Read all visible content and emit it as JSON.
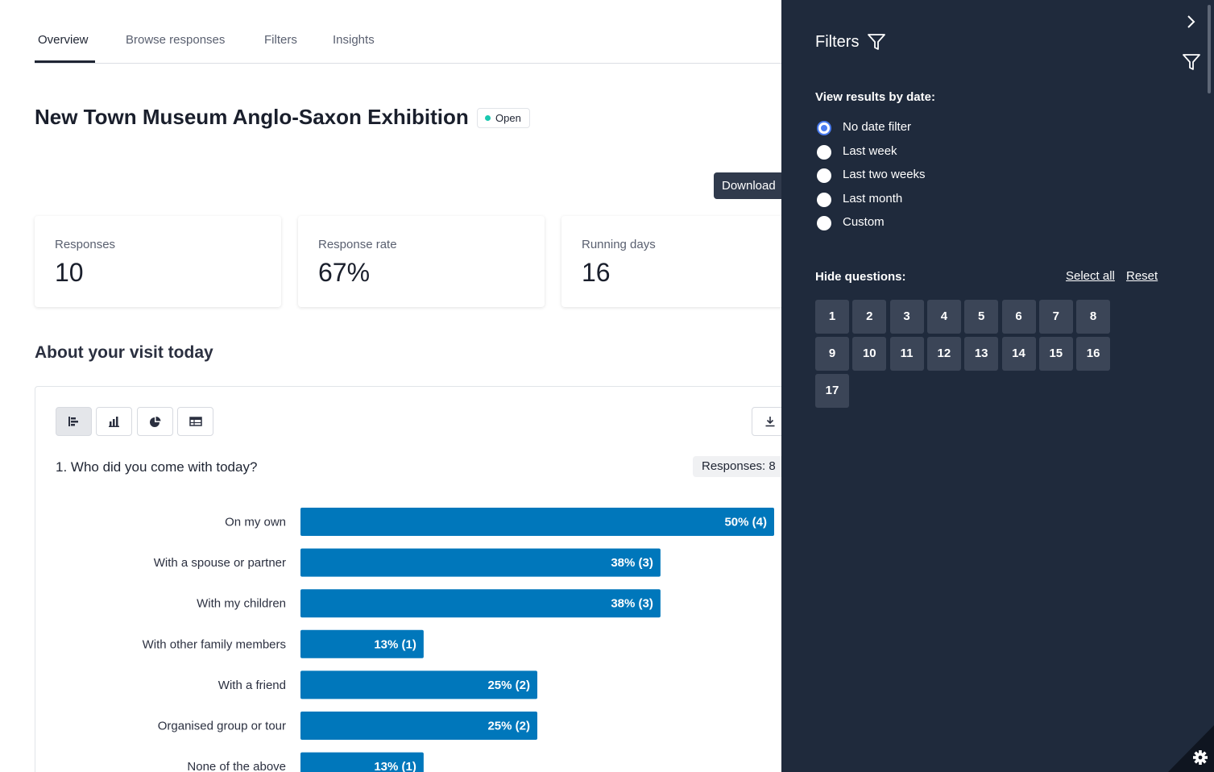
{
  "tabs": [
    {
      "label": "Overview",
      "active": true
    },
    {
      "label": "Browse responses",
      "active": false
    },
    {
      "label": "Filters",
      "active": false
    },
    {
      "label": "Insights",
      "active": false
    }
  ],
  "survey": {
    "title": "New Town Museum Anglo-Saxon Exhibition",
    "status": "Open",
    "status_color": "#1ac8b0"
  },
  "download_label": "Download",
  "stats": [
    {
      "label": "Responses",
      "value": "10"
    },
    {
      "label": "Response rate",
      "value": "67%"
    },
    {
      "label": "Running days",
      "value": "16"
    }
  ],
  "section_title": "About your visit today",
  "chart_view_buttons": [
    {
      "icon": "horizontal-bar-chart-icon",
      "active": true
    },
    {
      "icon": "vertical-bar-chart-icon",
      "active": false
    },
    {
      "icon": "pie-chart-icon",
      "active": false
    },
    {
      "icon": "table-icon",
      "active": false
    }
  ],
  "question": {
    "title": "1. Who did you come with today?",
    "responses_label": "Responses: 8"
  },
  "chart_data": {
    "type": "bar",
    "orientation": "horizontal",
    "categories": [
      "On my own",
      "With a spouse or partner",
      "With my children",
      "With other family members",
      "With a friend",
      "Organised group or tour",
      "None of the above"
    ],
    "values": [
      50,
      38,
      38,
      13,
      25,
      25,
      13
    ],
    "counts": [
      4,
      3,
      3,
      1,
      2,
      2,
      1
    ],
    "value_labels": [
      "50% (4)",
      "38% (3)",
      "38% (3)",
      "13% (1)",
      "25% (2)",
      "25% (2)",
      "13% (1)"
    ],
    "bar_color": "#0077bb",
    "xlim": [
      0,
      50
    ]
  },
  "filters_panel": {
    "title": "Filters",
    "date_group_label": "View results by date:",
    "date_options": [
      {
        "label": "No date filter",
        "checked": true
      },
      {
        "label": "Last week",
        "checked": false
      },
      {
        "label": "Last two weeks",
        "checked": false
      },
      {
        "label": "Last month",
        "checked": false
      },
      {
        "label": "Custom",
        "checked": false
      }
    ],
    "hide_questions_label": "Hide questions:",
    "select_all_label": "Select all",
    "reset_label": "Reset",
    "question_numbers": [
      "1",
      "2",
      "3",
      "4",
      "5",
      "6",
      "7",
      "8",
      "9",
      "10",
      "11",
      "12",
      "13",
      "14",
      "15",
      "16",
      "17"
    ],
    "background_color": "#1f2a3c",
    "accent_color": "#4a7cf0"
  }
}
